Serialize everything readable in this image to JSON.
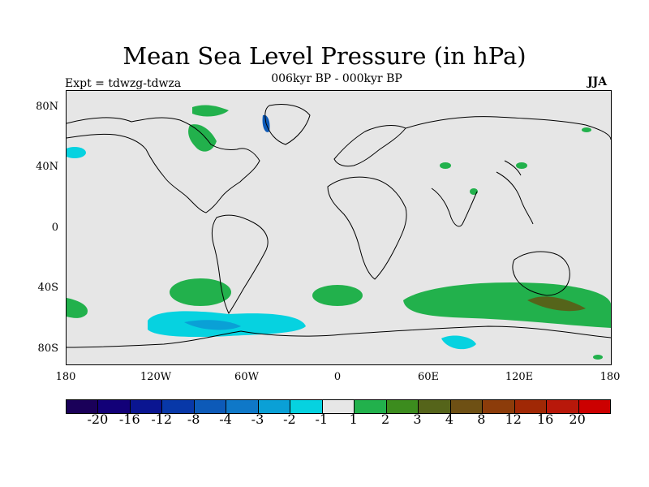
{
  "title": "Mean Sea Level Pressure (in hPa)",
  "subtitle": "006kyr BP - 000kyr BP",
  "expt_label": "Expt = tdwzg-tdwza",
  "season": "JJA",
  "lat_labels": [
    "80N",
    "40N",
    "0",
    "40S",
    "80S"
  ],
  "lon_labels": [
    "180",
    "120W",
    "60W",
    "0",
    "60E",
    "120E",
    "180"
  ],
  "colorbar": {
    "colors": [
      "#1a0059",
      "#120078",
      "#0a1591",
      "#0838a8",
      "#0d5ab8",
      "#0f78c8",
      "#0aa0d6",
      "#06d2e0",
      "#e6e6e6",
      "#22b14c",
      "#3c8c1e",
      "#55641a",
      "#6e5014",
      "#8c3c0a",
      "#a02805",
      "#b8180a",
      "#cc0000"
    ],
    "labels": [
      "-20",
      "-16",
      "-12",
      "-8",
      "-4",
      "-3",
      "-2",
      "-1",
      "1",
      "2",
      "3",
      "4",
      "8",
      "12",
      "16",
      "20"
    ]
  },
  "colors": {
    "background": "#e6e6e6",
    "positive_1": "#22b14c",
    "positive_2": "#55641a",
    "negative_1": "#06d2e0",
    "negative_2": "#0aa0d6",
    "negative_3": "#0d5ab8"
  }
}
